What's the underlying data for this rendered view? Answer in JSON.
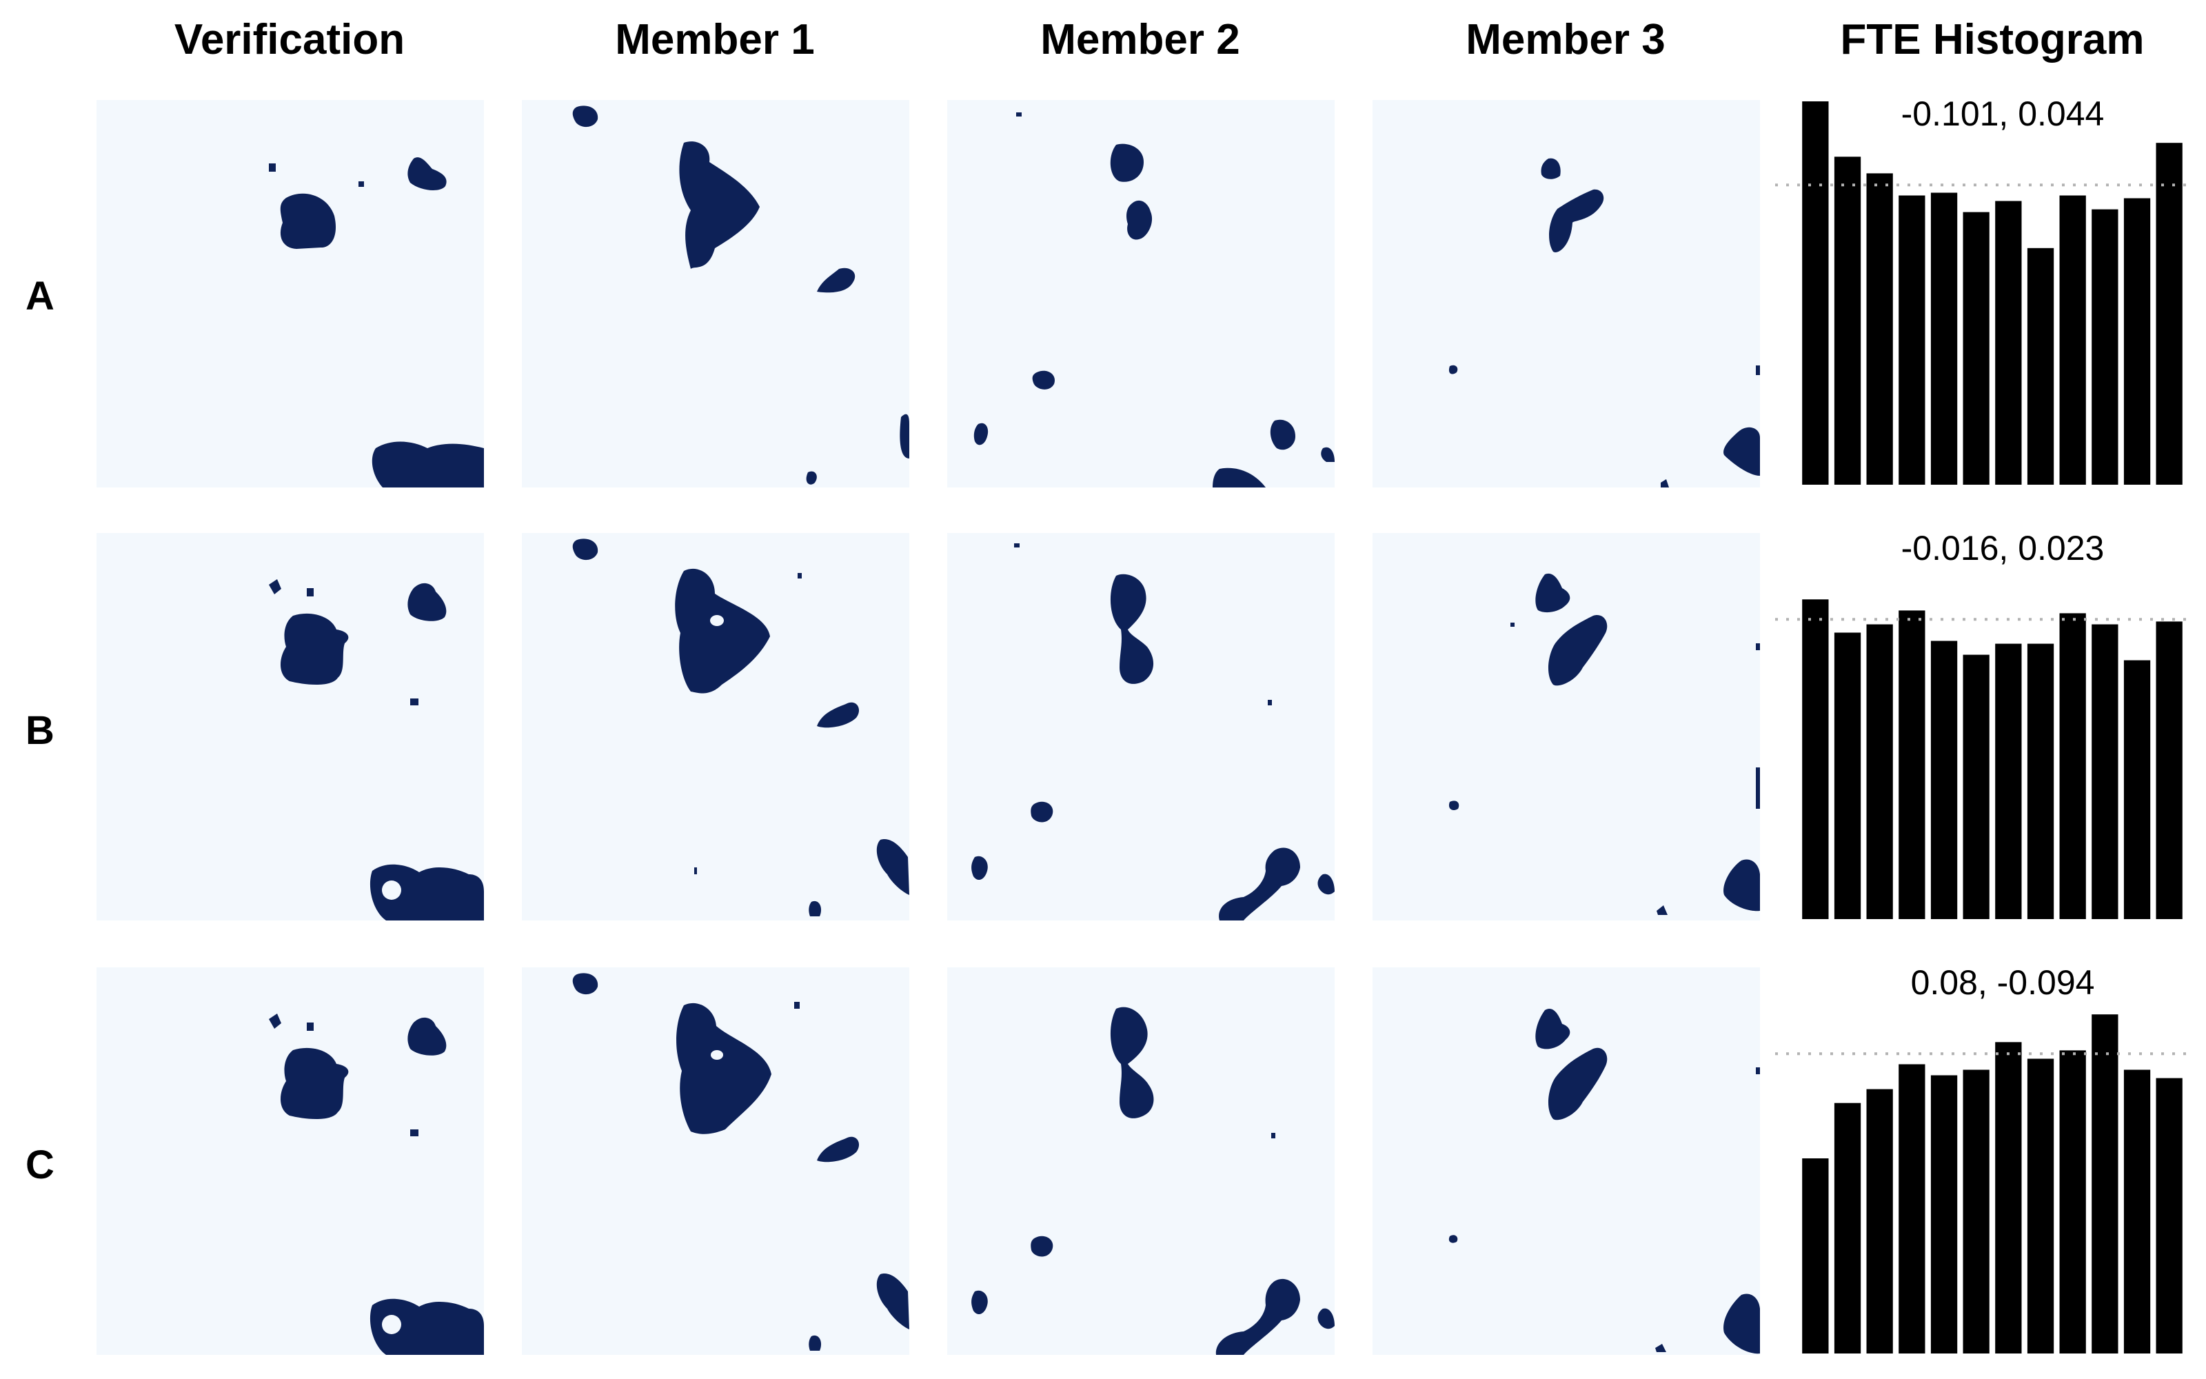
{
  "headers": {
    "verification": "Verification",
    "member1": "Member 1",
    "member2": "Member 2",
    "member3": "Member 3",
    "histogram": "FTE Histogram"
  },
  "row_labels": [
    "A",
    "B",
    "C"
  ],
  "colors": {
    "field_background": "#f3f8fd",
    "blob_fill": "#0d2157",
    "bar_fill": "#000000",
    "reference_line": "#b3b3b3"
  },
  "chart_data": [
    {
      "type": "bar",
      "row": "A",
      "annotation": "-0.101, 0.044",
      "values": [
        0.1385,
        0.1185,
        0.1125,
        0.1045,
        0.1055,
        0.0985,
        0.1025,
        0.0855,
        0.1045,
        0.0995,
        0.1035,
        0.1235
      ],
      "reference_value": 0.1083,
      "ylim": [
        0,
        0.1385
      ],
      "xlabel": "",
      "ylabel": ""
    },
    {
      "type": "bar",
      "row": "B",
      "annotation": "-0.016, 0.023",
      "values": [
        0.1155,
        0.1035,
        0.1065,
        0.1115,
        0.1005,
        0.0955,
        0.0995,
        0.0995,
        0.1105,
        0.1065,
        0.0935,
        0.1075
      ],
      "reference_value": 0.1083,
      "ylim": [
        0,
        0.1385
      ],
      "xlabel": "",
      "ylabel": ""
    },
    {
      "type": "bar",
      "row": "C",
      "annotation": "0.08, -0.094",
      "values": [
        0.0705,
        0.0905,
        0.0955,
        0.1045,
        0.1005,
        0.1025,
        0.1125,
        0.1065,
        0.1095,
        0.1225,
        0.1025,
        0.0995
      ],
      "reference_value": 0.1083,
      "ylim": [
        0,
        0.1385
      ],
      "xlabel": "",
      "ylabel": ""
    }
  ]
}
